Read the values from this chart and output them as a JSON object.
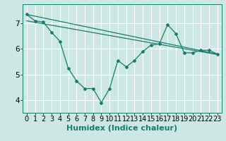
{
  "title": "",
  "xlabel": "Humidex (Indice chaleur)",
  "ylabel": "",
  "bg_color": "#cde8e4",
  "grid_color": "#ffffff",
  "line_color": "#1a7a6e",
  "x_ticks": [
    0,
    1,
    2,
    3,
    4,
    5,
    6,
    7,
    8,
    9,
    10,
    11,
    12,
    13,
    14,
    15,
    16,
    17,
    18,
    19,
    20,
    21,
    22,
    23
  ],
  "y_ticks": [
    4,
    5,
    6,
    7
  ],
  "ylim": [
    3.5,
    7.75
  ],
  "xlim": [
    -0.5,
    23.5
  ],
  "line1_x": [
    0,
    1,
    2,
    3,
    4,
    5,
    6,
    7,
    8,
    9,
    10,
    11,
    12,
    13,
    14,
    15,
    16,
    17,
    18,
    19,
    20,
    21,
    22,
    23
  ],
  "line1_y": [
    7.35,
    7.1,
    7.05,
    6.65,
    6.3,
    5.25,
    4.75,
    4.45,
    4.45,
    3.9,
    4.45,
    5.55,
    5.3,
    5.55,
    5.9,
    6.15,
    6.2,
    6.95,
    6.6,
    5.85,
    5.85,
    5.95,
    5.95,
    5.8
  ],
  "line2_x": [
    0,
    23
  ],
  "line2_y": [
    7.35,
    5.8
  ],
  "line3_x": [
    0,
    23
  ],
  "line3_y": [
    7.1,
    5.78
  ],
  "font_size_xlabel": 8,
  "font_size_ticks": 7
}
